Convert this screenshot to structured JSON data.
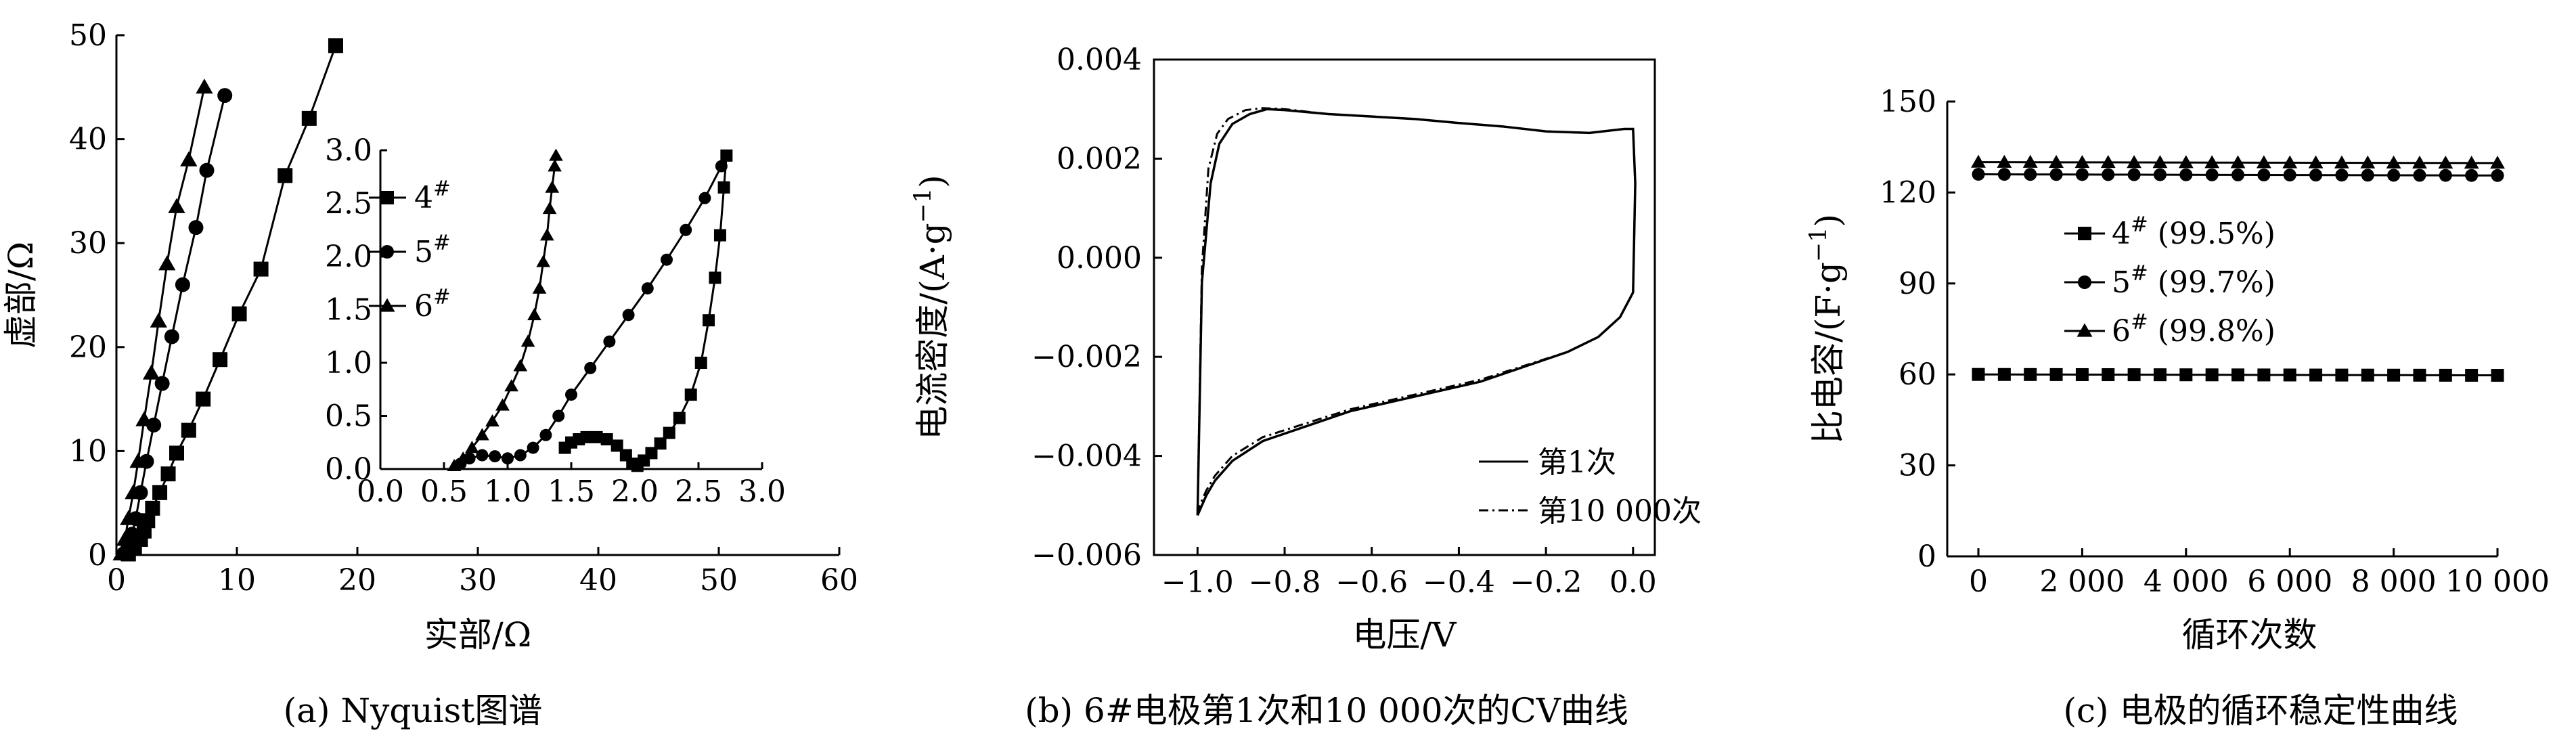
{
  "chart_data": [
    {
      "id": "a",
      "type": "line",
      "caption": "(a) Nyquist图谱",
      "xlabel": "实部/Ω",
      "ylabel": "虚部/Ω",
      "xlim": [
        0,
        60
      ],
      "ylim": [
        0,
        50
      ],
      "xticks": [
        "0",
        "10",
        "20",
        "30",
        "40",
        "50",
        "60"
      ],
      "yticks": [
        "0",
        "10",
        "20",
        "30",
        "40",
        "50"
      ],
      "xtick_values": [
        0,
        10,
        20,
        30,
        40,
        50,
        60
      ],
      "ytick_values": [
        0,
        10,
        20,
        30,
        40,
        50
      ],
      "series": [
        {
          "name": "4#",
          "marker": "square",
          "x": [
            1.0,
            1.5,
            2.0,
            2.3,
            2.6,
            3.0,
            3.6,
            4.3,
            5.0,
            6.0,
            7.2,
            8.6,
            10.2,
            12.0,
            14.0,
            16.0,
            18.2
          ],
          "y": [
            0.1,
            0.8,
            1.5,
            2.3,
            3.3,
            4.5,
            6.0,
            7.8,
            9.8,
            12.0,
            15.0,
            18.8,
            23.2,
            27.5,
            36.5,
            42.0,
            49.0
          ]
        },
        {
          "name": "5#",
          "marker": "circle",
          "x": [
            0.6,
            1.0,
            1.3,
            1.6,
            2.0,
            2.5,
            3.1,
            3.8,
            4.6,
            5.5,
            6.6,
            7.5,
            9.0
          ],
          "y": [
            0.1,
            1.0,
            2.0,
            3.5,
            6.0,
            9.0,
            12.5,
            16.5,
            21.0,
            26.0,
            31.5,
            37.0,
            44.2
          ]
        },
        {
          "name": "6#",
          "marker": "triangle",
          "x": [
            0.4,
            0.7,
            1.0,
            1.4,
            1.8,
            2.3,
            2.9,
            3.5,
            4.2,
            5.0,
            6.0,
            7.3
          ],
          "y": [
            0.1,
            1.5,
            3.5,
            6.0,
            9.0,
            13.0,
            17.5,
            22.5,
            28.0,
            33.5,
            38.0,
            45.0
          ]
        }
      ],
      "inset": {
        "xlim": [
          0,
          3
        ],
        "ylim": [
          0,
          3
        ],
        "xticks": [
          "0.0",
          "0.5",
          "1.0",
          "1.5",
          "2.0",
          "2.5",
          "3.0"
        ],
        "yticks": [
          "0.0",
          "0.5",
          "1.0",
          "1.5",
          "2.0",
          "2.5",
          "3.0"
        ],
        "tick_values": [
          0,
          0.5,
          1.0,
          1.5,
          2.0,
          2.5,
          3.0
        ],
        "legend": [
          "4#",
          "5#",
          "6#"
        ],
        "series": [
          {
            "name": "4#",
            "marker": "square",
            "x": [
              1.45,
              1.5,
              1.56,
              1.62,
              1.7,
              1.78,
              1.86,
              1.93,
              1.98,
              2.02,
              2.07,
              2.13,
              2.2,
              2.27,
              2.35,
              2.44,
              2.52,
              2.58,
              2.63,
              2.67,
              2.7,
              2.72
            ],
            "y": [
              0.2,
              0.25,
              0.28,
              0.3,
              0.3,
              0.28,
              0.22,
              0.13,
              0.05,
              0.03,
              0.08,
              0.15,
              0.24,
              0.34,
              0.48,
              0.7,
              1.0,
              1.4,
              1.8,
              2.2,
              2.65,
              2.95
            ]
          },
          {
            "name": "5#",
            "marker": "circle",
            "x": [
              0.63,
              0.7,
              0.8,
              0.9,
              1.0,
              1.1,
              1.2,
              1.3,
              1.4,
              1.5,
              1.65,
              1.8,
              1.95,
              2.1,
              2.25,
              2.4,
              2.55,
              2.68
            ],
            "y": [
              0.05,
              0.1,
              0.13,
              0.12,
              0.1,
              0.13,
              0.2,
              0.32,
              0.5,
              0.7,
              0.95,
              1.2,
              1.45,
              1.7,
              1.97,
              2.25,
              2.55,
              2.85
            ]
          },
          {
            "name": "6#",
            "marker": "triangle",
            "x": [
              0.58,
              0.65,
              0.72,
              0.8,
              0.88,
              0.96,
              1.03,
              1.1,
              1.16,
              1.21,
              1.25,
              1.28,
              1.31,
              1.33,
              1.35,
              1.37,
              1.38
            ],
            "y": [
              0.03,
              0.1,
              0.2,
              0.32,
              0.45,
              0.6,
              0.78,
              0.97,
              1.2,
              1.45,
              1.7,
              1.95,
              2.2,
              2.45,
              2.65,
              2.85,
              2.95
            ]
          }
        ]
      }
    },
    {
      "id": "b",
      "type": "line",
      "caption": "(b) 6#电极第1次和10 000次的CV曲线",
      "xlabel": "电压/V",
      "ylabel": "电流密度/(A·g−1)",
      "xlim": [
        -1.1,
        0.05
      ],
      "ylim": [
        -0.006,
        0.004
      ],
      "xticks": [
        "−1.0",
        "−0.8",
        "−0.6",
        "−0.4",
        "−0.2",
        "0.0"
      ],
      "yticks": [
        "−0.006",
        "−0.004",
        "−0.002",
        "0.000",
        "0.002",
        "0.004"
      ],
      "xtick_values": [
        -1.0,
        -0.8,
        -0.6,
        -0.4,
        -0.2,
        0.0
      ],
      "ytick_values": [
        -0.006,
        -0.004,
        -0.002,
        0.0,
        0.002,
        0.004
      ],
      "series": [
        {
          "name": "第1次",
          "style": "solid",
          "x": [
            -1.0,
            -0.99,
            -0.97,
            -0.95,
            -0.92,
            -0.88,
            -0.84,
            -0.8,
            -0.7,
            -0.6,
            -0.5,
            -0.4,
            -0.3,
            -0.2,
            -0.1,
            -0.02,
            0.0,
            0.005,
            0.0,
            -0.03,
            -0.08,
            -0.15,
            -0.25,
            -0.35,
            -0.45,
            -0.55,
            -0.65,
            -0.75,
            -0.85,
            -0.92,
            -0.96,
            -0.98,
            -0.99,
            -1.0
          ],
          "y": [
            -0.0052,
            -0.0005,
            0.0015,
            0.0023,
            0.0027,
            0.0029,
            0.003,
            0.00298,
            0.0029,
            0.00285,
            0.0028,
            0.00272,
            0.00265,
            0.00255,
            0.00252,
            0.0026,
            0.0026,
            0.0015,
            -0.0007,
            -0.0012,
            -0.0016,
            -0.0019,
            -0.0022,
            -0.0025,
            -0.0027,
            -0.0029,
            -0.0031,
            -0.0034,
            -0.0037,
            -0.0041,
            -0.0045,
            -0.0048,
            -0.005,
            -0.0052
          ]
        },
        {
          "name": "第10 000次",
          "style": "dashdot",
          "x": [
            -1.0,
            -0.99,
            -0.975,
            -0.955,
            -0.93,
            -0.89,
            -0.85,
            -0.8,
            -0.7,
            -0.6,
            -0.5,
            -0.4,
            -0.3,
            -0.2,
            -0.1,
            -0.02,
            0.0,
            0.005,
            0.0,
            -0.03,
            -0.08,
            -0.15,
            -0.25,
            -0.35,
            -0.45,
            -0.55,
            -0.65,
            -0.75,
            -0.85,
            -0.92,
            -0.96,
            -0.98,
            -0.99,
            -1.0
          ],
          "y": [
            -0.0051,
            -0.0002,
            0.0018,
            0.0025,
            0.0028,
            0.00298,
            0.00302,
            0.003,
            0.0029,
            0.00285,
            0.0028,
            0.00272,
            0.00265,
            0.00255,
            0.00252,
            0.0026,
            0.0026,
            0.0015,
            -0.0007,
            -0.0012,
            -0.0016,
            -0.0019,
            -0.00218,
            -0.00246,
            -0.00266,
            -0.00286,
            -0.00306,
            -0.00334,
            -0.00362,
            -0.004,
            -0.0044,
            -0.0047,
            -0.0049,
            -0.0051
          ]
        }
      ],
      "legend": [
        "第1次",
        "第10 000次"
      ]
    },
    {
      "id": "c",
      "type": "line",
      "caption": "(c) 电极的循环稳定性曲线",
      "xlabel": "循环次数",
      "ylabel": "比电容/(F·g−1)",
      "xlim": [
        -600,
        10000
      ],
      "ylim": [
        0,
        150
      ],
      "xticks": [
        "0",
        "2 000",
        "4 000",
        "6 000",
        "8 000",
        "10 000"
      ],
      "yticks": [
        "0",
        "30",
        "60",
        "90",
        "120",
        "150"
      ],
      "xtick_values": [
        0,
        2000,
        4000,
        6000,
        8000,
        10000
      ],
      "ytick_values": [
        0,
        30,
        60,
        90,
        120,
        150
      ],
      "series": [
        {
          "name": "4# (99.5%)",
          "marker": "square",
          "x_start": 0,
          "x_step": 500,
          "count": 21,
          "start": 60.0,
          "end": 59.7
        },
        {
          "name": "5# (99.7%)",
          "marker": "circle",
          "x_start": 0,
          "x_step": 500,
          "count": 21,
          "start": 126.0,
          "end": 125.6
        },
        {
          "name": "6# (99.8%)",
          "marker": "triangle",
          "x_start": 0,
          "x_step": 500,
          "count": 21,
          "start": 130.0,
          "end": 129.7
        }
      ]
    }
  ]
}
